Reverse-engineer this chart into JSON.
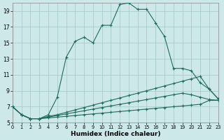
{
  "xlabel": "Humidex (Indice chaleur)",
  "background_color": "#cce8e8",
  "grid_color": "#aacccc",
  "line_color": "#1e6b5e",
  "xlim": [
    0,
    23
  ],
  "ylim": [
    5,
    20
  ],
  "xticks": [
    0,
    1,
    2,
    3,
    4,
    5,
    6,
    7,
    8,
    9,
    10,
    11,
    12,
    13,
    14,
    15,
    16,
    17,
    18,
    19,
    20,
    21,
    22,
    23
  ],
  "yticks": [
    5,
    7,
    9,
    11,
    13,
    15,
    17,
    19
  ],
  "series": [
    {
      "x": [
        0,
        1,
        2,
        3,
        4,
        5,
        6,
        7,
        8,
        9,
        10,
        11,
        12,
        13,
        14,
        15,
        16,
        17,
        18,
        19,
        20,
        21,
        22,
        23
      ],
      "y": [
        7.0,
        6.0,
        5.5,
        5.5,
        6.0,
        8.2,
        13.2,
        15.2,
        15.7,
        15.0,
        17.2,
        17.2,
        19.8,
        20.0,
        19.2,
        19.2,
        17.5,
        15.8,
        11.8,
        11.8,
        11.5,
        10.0,
        9.2,
        8.0
      ]
    },
    {
      "x": [
        0,
        1,
        2,
        3,
        4,
        5,
        6,
        7,
        8,
        9,
        10,
        11,
        12,
        13,
        14,
        15,
        16,
        17,
        18,
        19,
        20,
        21,
        22,
        23
      ],
      "y": [
        7.0,
        6.0,
        5.5,
        5.5,
        5.8,
        6.0,
        6.3,
        6.6,
        6.9,
        7.2,
        7.5,
        7.8,
        8.1,
        8.4,
        8.7,
        9.0,
        9.3,
        9.6,
        9.9,
        10.2,
        10.5,
        10.8,
        9.2,
        8.0
      ]
    },
    {
      "x": [
        0,
        1,
        2,
        3,
        4,
        5,
        6,
        7,
        8,
        9,
        10,
        11,
        12,
        13,
        14,
        15,
        16,
        17,
        18,
        19,
        20,
        21,
        22,
        23
      ],
      "y": [
        7.0,
        6.0,
        5.5,
        5.5,
        5.7,
        5.9,
        6.1,
        6.3,
        6.5,
        6.7,
        6.9,
        7.1,
        7.3,
        7.5,
        7.7,
        7.9,
        8.1,
        8.3,
        8.5,
        8.7,
        8.5,
        8.2,
        7.9,
        7.8
      ]
    },
    {
      "x": [
        0,
        1,
        2,
        3,
        4,
        5,
        6,
        7,
        8,
        9,
        10,
        11,
        12,
        13,
        14,
        15,
        16,
        17,
        18,
        19,
        20,
        21,
        22,
        23
      ],
      "y": [
        7.0,
        6.0,
        5.5,
        5.5,
        5.6,
        5.7,
        5.8,
        5.9,
        6.0,
        6.1,
        6.2,
        6.3,
        6.4,
        6.5,
        6.6,
        6.7,
        6.8,
        6.9,
        7.0,
        7.1,
        7.2,
        7.3,
        7.8,
        7.8
      ]
    }
  ]
}
